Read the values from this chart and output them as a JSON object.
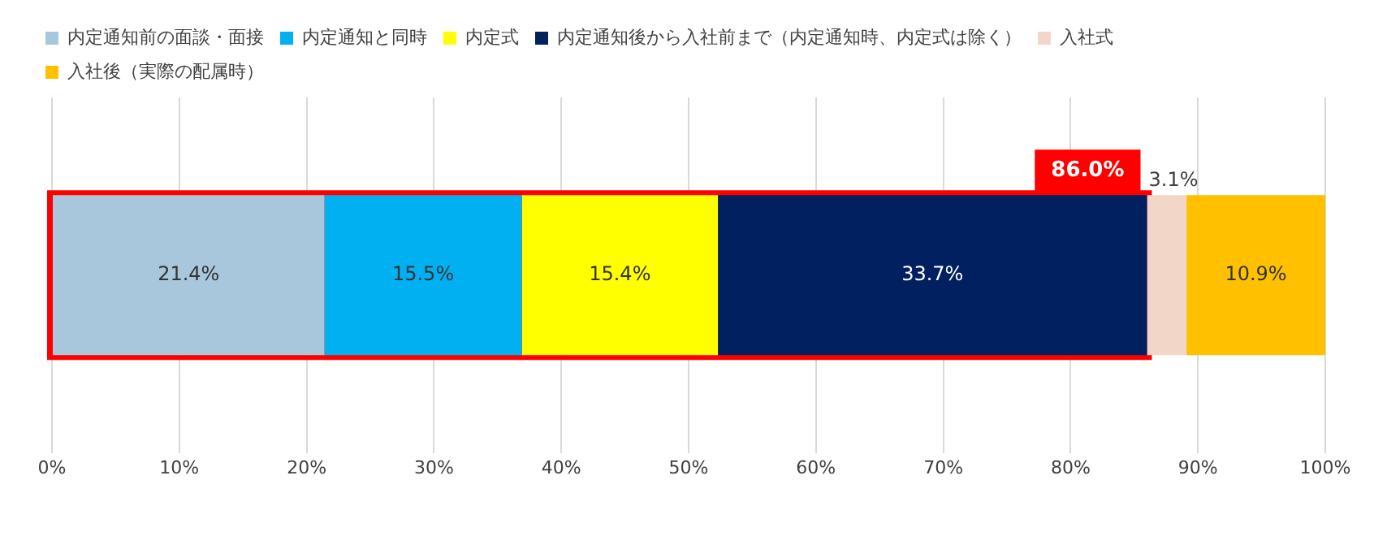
{
  "chart_data": {
    "type": "bar",
    "orientation": "horizontal",
    "stacked": true,
    "categories": [
      null
    ],
    "series": [
      {
        "name": "内定通知前の面談・面接",
        "color": "#a9c7dc",
        "values": [
          21.4
        ],
        "value_labels": [
          "21.4%"
        ]
      },
      {
        "name": "内定通知と同時",
        "color": "#00b0f0",
        "values": [
          15.5
        ],
        "value_labels": [
          "15.5%"
        ]
      },
      {
        "name": "内定式",
        "color": "#ffff00",
        "values": [
          15.4
        ],
        "value_labels": [
          "15.4%"
        ]
      },
      {
        "name": "内定通知後から入社前まで（内定通知時、内定式は除く）",
        "color": "#002060",
        "values": [
          33.7
        ],
        "value_labels": [
          "33.7%"
        ]
      },
      {
        "name": "入社式",
        "color": "#f2d7c9",
        "values": [
          3.1
        ],
        "value_labels": [
          "3.1%"
        ]
      },
      {
        "name": "入社後（実際の配属時）",
        "color": "#ffc000",
        "values": [
          10.9
        ],
        "value_labels": [
          "10.9%"
        ]
      }
    ],
    "xlim": [
      0,
      100
    ],
    "xticks": [
      {
        "value": 0,
        "label": "0%"
      },
      {
        "value": 10,
        "label": "10%"
      },
      {
        "value": 20,
        "label": "20%"
      },
      {
        "value": 30,
        "label": "30%"
      },
      {
        "value": 40,
        "label": "40%"
      },
      {
        "value": 50,
        "label": "50%"
      },
      {
        "value": 60,
        "label": "60%"
      },
      {
        "value": 70,
        "label": "70%"
      },
      {
        "value": 80,
        "label": "80%"
      },
      {
        "value": 90,
        "label": "90%"
      },
      {
        "value": 100,
        "label": "100%"
      }
    ],
    "bands": [
      {
        "axis": "x",
        "from": 0,
        "to": 86,
        "label": "86.0%",
        "color": "#ff0000"
      }
    ],
    "grid": "x",
    "legend": "top"
  }
}
